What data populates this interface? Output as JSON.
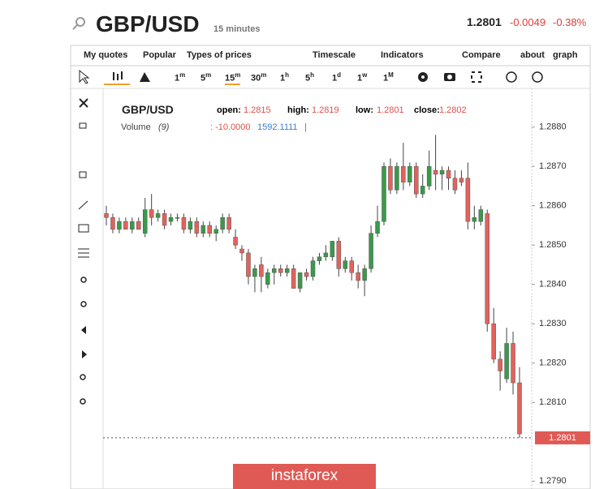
{
  "header": {
    "symbol": "GBP/USD",
    "interval": "15 minutes",
    "price": "1.2801",
    "change": "-0.0049",
    "change_percent": "-0.38%"
  },
  "menu": [
    "My quotes",
    "Popular",
    "Types of prices",
    "Timescale",
    "Indicators",
    "Compare",
    "about",
    "graph"
  ],
  "toolbar": {
    "timescales": [
      {
        "n": "1",
        "u": "m"
      },
      {
        "n": "5",
        "u": "m"
      },
      {
        "n": "15",
        "u": "m"
      },
      {
        "n": "30",
        "u": "m"
      },
      {
        "n": "1",
        "u": "h"
      },
      {
        "n": "5",
        "u": "h"
      },
      {
        "n": "1",
        "u": "d"
      },
      {
        "n": "1",
        "u": "w"
      },
      {
        "n": "1",
        "u": "M"
      }
    ],
    "active": 2
  },
  "legend": {
    "symbol": "GBP/USD",
    "open_label": "open:",
    "open": "1.2815",
    "high_label": "high:",
    "high": "1.2819",
    "low_label": "low:",
    "low": "1.2801",
    "close_label": "close:",
    "close": "1.2802",
    "volume_label": "Volume",
    "volume_period": "(9)",
    "volume_value": ": -10.0000",
    "volume_value2": "1592.1111",
    "volume_sep": "|"
  },
  "watermark": "instaforex",
  "chart_data": {
    "type": "candlestick",
    "open": [
      1.2858,
      1.2857,
      1.2854,
      1.2856,
      1.2854,
      1.2856,
      1.2853,
      1.2859,
      1.2857,
      1.2858,
      1.2856,
      1.2857,
      1.2857,
      1.2854,
      1.2856,
      1.2853,
      1.2855,
      1.2853,
      1.2854,
      1.2857,
      1.2852,
      1.2849,
      1.2848,
      1.2842,
      1.2845,
      1.284,
      1.2843,
      1.2844,
      1.2843,
      1.2844,
      1.2839,
      1.2843,
      1.2842,
      1.2846,
      1.2847,
      1.2847,
      1.2851,
      1.2844,
      1.2846,
      1.2843,
      1.2841,
      1.2844,
      1.2853,
      1.2856,
      1.287,
      1.2864,
      1.287,
      1.2866,
      1.287,
      1.2863,
      1.2865,
      1.2869,
      1.2868,
      1.2869,
      1.2867,
      1.2867,
      1.2867,
      1.2856,
      1.2856,
      1.2858,
      1.283,
      1.2821,
      1.2816,
      1.2825,
      1.2815
    ],
    "high": [
      1.286,
      1.2858,
      1.2857,
      1.2857,
      1.2857,
      1.2857,
      1.2862,
      1.2863,
      1.2859,
      1.2859,
      1.2858,
      1.2858,
      1.2858,
      1.2857,
      1.2857,
      1.2856,
      1.2856,
      1.2855,
      1.2858,
      1.2858,
      1.2854,
      1.285,
      1.2849,
      1.2845,
      1.2847,
      1.2844,
      1.2845,
      1.2845,
      1.2845,
      1.2845,
      1.2843,
      1.2844,
      1.2847,
      1.2848,
      1.285,
      1.2851,
      1.2852,
      1.2847,
      1.2847,
      1.2845,
      1.2845,
      1.2855,
      1.286,
      1.2871,
      1.2872,
      1.2871,
      1.2876,
      1.2871,
      1.2871,
      1.2868,
      1.2874,
      1.2878,
      1.287,
      1.287,
      1.2869,
      1.2869,
      1.2871,
      1.286,
      1.286,
      1.2859,
      1.2834,
      1.2823,
      1.2829,
      1.2828,
      1.2819
    ],
    "low": [
      1.2855,
      1.2853,
      1.2853,
      1.2854,
      1.2853,
      1.2854,
      1.2852,
      1.2855,
      1.2856,
      1.2854,
      1.2855,
      1.2856,
      1.2853,
      1.2853,
      1.2852,
      1.2852,
      1.2852,
      1.2851,
      1.2853,
      1.2853,
      1.2849,
      1.2846,
      1.284,
      1.2838,
      1.2838,
      1.2839,
      1.284,
      1.2842,
      1.2842,
      1.2839,
      1.2838,
      1.2841,
      1.2841,
      1.2845,
      1.2846,
      1.2846,
      1.2842,
      1.2843,
      1.2841,
      1.2839,
      1.2837,
      1.2843,
      1.2852,
      1.2855,
      1.2863,
      1.2863,
      1.2864,
      1.2865,
      1.2862,
      1.2862,
      1.2864,
      1.2864,
      1.2864,
      1.2864,
      1.2863,
      1.2865,
      1.2854,
      1.2854,
      1.2855,
      1.2828,
      1.282,
      1.2813,
      1.2815,
      1.2812,
      1.2801
    ],
    "close": [
      1.2857,
      1.2854,
      1.2856,
      1.2854,
      1.2856,
      1.2854,
      1.2859,
      1.2857,
      1.2858,
      1.2855,
      1.2857,
      1.2857,
      1.2854,
      1.2856,
      1.2853,
      1.2855,
      1.2853,
      1.2854,
      1.2857,
      1.2854,
      1.285,
      1.2848,
      1.2842,
      1.2844,
      1.2842,
      1.2843,
      1.2844,
      1.2843,
      1.2844,
      1.2839,
      1.2843,
      1.2842,
      1.2846,
      1.2847,
      1.2848,
      1.2851,
      1.2844,
      1.2846,
      1.2843,
      1.2841,
      1.2844,
      1.2853,
      1.2856,
      1.287,
      1.2864,
      1.287,
      1.2866,
      1.287,
      1.2863,
      1.2865,
      1.287,
      1.2868,
      1.2869,
      1.2867,
      1.2864,
      1.2866,
      1.2856,
      1.2857,
      1.2859,
      1.283,
      1.2821,
      1.2818,
      1.2825,
      1.2815,
      1.2802
    ],
    "up_color": "#3a9a4a",
    "down_color": "#e2625c",
    "ylim": [
      1.2788,
      1.2889
    ],
    "yticks": [
      {
        "value": 1.279,
        "label": "1.2790"
      },
      1.2801,
      {
        "value": 1.281,
        "label": "1.2810"
      },
      {
        "value": 1.282,
        "label": "1.2820"
      },
      {
        "value": 1.283,
        "label": "1.2830"
      },
      {
        "value": 1.284,
        "label": "1.2840"
      },
      {
        "value": 1.285,
        "label": "1.2850"
      },
      {
        "value": 1.286,
        "label": "1.2860"
      },
      {
        "value": 1.287,
        "label": "1.2870"
      },
      {
        "value": 1.288,
        "label": "1.2880"
      }
    ],
    "last_price": 1.2801,
    "last_price_tick": 1
  }
}
